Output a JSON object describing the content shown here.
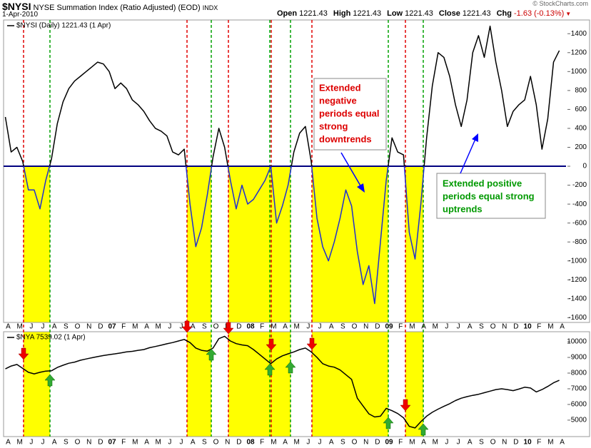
{
  "header": {
    "symbol": "$NYSI",
    "name": "NYSE Summation Index (Ratio Adjusted) (EOD)",
    "exchange": "INDX",
    "date": "1-Apr-2010",
    "quote": [
      {
        "label": "Open",
        "value": 1221.43
      },
      {
        "label": "High",
        "value": 1221.43
      },
      {
        "label": "Low",
        "value": 1221.43
      },
      {
        "label": "Close",
        "value": 1221.43
      },
      {
        "label": "Chg",
        "value": -1.63
      }
    ],
    "change_pct": "(-0.13%)",
    "watermark": "© StockCharts.com"
  },
  "annotations": [
    {
      "lines": [
        "Extended",
        "negative",
        "periods equal",
        "strong",
        "downtrends"
      ]
    },
    {
      "lines": [
        "Extended positive",
        "periods equal strong",
        "uptrends"
      ]
    }
  ],
  "chart_data": [
    {
      "type": "line",
      "zero_line": "#000080",
      "categories": [
        "A",
        null,
        "M",
        null,
        "J",
        null,
        "J",
        null,
        "A",
        null,
        "S",
        null,
        "O",
        null,
        "N",
        null,
        "D",
        null,
        "07",
        null,
        "F",
        null,
        "M",
        null,
        "A",
        null,
        "M",
        null,
        "J",
        null,
        "J",
        null,
        "A",
        null,
        "S",
        null,
        "O",
        null,
        "N",
        null,
        "D",
        null,
        "08",
        null,
        "F",
        null,
        "M",
        null,
        "A",
        null,
        "M",
        null,
        "J",
        null,
        "J",
        null,
        "A",
        null,
        "S",
        null,
        "O",
        null,
        "N",
        null,
        "D",
        null,
        "09",
        null,
        "F",
        null,
        "M",
        null,
        "A",
        null,
        "M",
        null,
        "J",
        null,
        "J",
        null,
        "A",
        null,
        "S",
        null,
        "O",
        null,
        "N",
        null,
        "D",
        null,
        "10",
        null,
        "F",
        null,
        "M",
        null,
        "A"
      ],
      "series": [
        {
          "name": "$NYSI (Daily) 1221.43 (1 Apr)",
          "color": "#000000",
          "negative_color": "#1f2fd0",
          "values": [
            520,
            150,
            200,
            50,
            -250,
            -250,
            -450,
            -150,
            80,
            450,
            680,
            820,
            900,
            950,
            1000,
            1050,
            1100,
            1080,
            1000,
            820,
            880,
            820,
            700,
            650,
            580,
            480,
            400,
            370,
            320,
            150,
            120,
            180,
            -400,
            -850,
            -650,
            -300,
            100,
            400,
            200,
            -150,
            -450,
            -200,
            -400,
            -350,
            -250,
            -150,
            0,
            -600,
            -420,
            -200,
            150,
            350,
            420,
            50,
            -550,
            -850,
            -1000,
            -800,
            -550,
            -250,
            -420,
            -900,
            -1250,
            -1050,
            -1450,
            -800,
            -150,
            300,
            150,
            120,
            -700,
            -980,
            -400,
            300,
            850,
            1200,
            1150,
            950,
            650,
            420,
            700,
            1200,
            1380,
            1150,
            1480,
            1100,
            800,
            420,
            580,
            650,
            700,
            950,
            650,
            180,
            500,
            1100,
            1221.43
          ]
        }
      ],
      "ylim": [
        -1650,
        1545
      ],
      "yticks": [
        1400,
        1200,
        1000,
        800,
        600,
        400,
        200,
        0,
        -200,
        -400,
        -600,
        -800,
        -1000,
        -1200,
        -1400,
        -1600
      ]
    },
    {
      "type": "line",
      "categories": [
        "A",
        null,
        "M",
        null,
        "J",
        null,
        "J",
        null,
        "A",
        null,
        "S",
        null,
        "O",
        null,
        "N",
        null,
        "D",
        null,
        "07",
        null,
        "F",
        null,
        "M",
        null,
        "A",
        null,
        "M",
        null,
        "J",
        null,
        "J",
        null,
        "A",
        null,
        "S",
        null,
        "O",
        null,
        "N",
        null,
        "D",
        null,
        "08",
        null,
        "F",
        null,
        "M",
        null,
        "A",
        null,
        "M",
        null,
        "J",
        null,
        "J",
        null,
        "A",
        null,
        "S",
        null,
        "O",
        null,
        "N",
        null,
        "D",
        null,
        "09",
        null,
        "F",
        null,
        "M",
        null,
        "A",
        null,
        "M",
        null,
        "J",
        null,
        "J",
        null,
        "A",
        null,
        "S",
        null,
        "O",
        null,
        "N",
        null,
        "D",
        null,
        "10",
        null,
        "F",
        null,
        "M",
        null,
        "A"
      ],
      "series": [
        {
          "name": "$NYA 7539.02 (1 Apr)",
          "color": "#000000",
          "values": [
            8270,
            8450,
            8550,
            8300,
            8050,
            7950,
            8050,
            8130,
            8150,
            8360,
            8500,
            8630,
            8700,
            8820,
            8900,
            8980,
            9050,
            9120,
            9180,
            9230,
            9290,
            9350,
            9390,
            9450,
            9500,
            9620,
            9700,
            9780,
            9870,
            9950,
            10050,
            10150,
            9950,
            9600,
            9450,
            9400,
            9600,
            10200,
            10350,
            10050,
            9880,
            9800,
            9750,
            9500,
            9200,
            8900,
            8600,
            8900,
            9100,
            9230,
            9350,
            9500,
            9600,
            9350,
            9000,
            8600,
            8450,
            8380,
            8200,
            7900,
            7600,
            6400,
            5900,
            5400,
            5200,
            5250,
            5750,
            5600,
            5420,
            5150,
            4600,
            4500,
            4900,
            5250,
            5500,
            5700,
            5880,
            6050,
            6250,
            6400,
            6500,
            6580,
            6650,
            6750,
            6850,
            6950,
            7000,
            6950,
            6880,
            6980,
            7100,
            7050,
            6800,
            6950,
            7150,
            7380,
            7539.02
          ]
        }
      ],
      "ylim": [
        3950,
        10640
      ],
      "yticks": [
        10000,
        9000,
        8000,
        7000,
        6000,
        5000
      ]
    }
  ]
}
